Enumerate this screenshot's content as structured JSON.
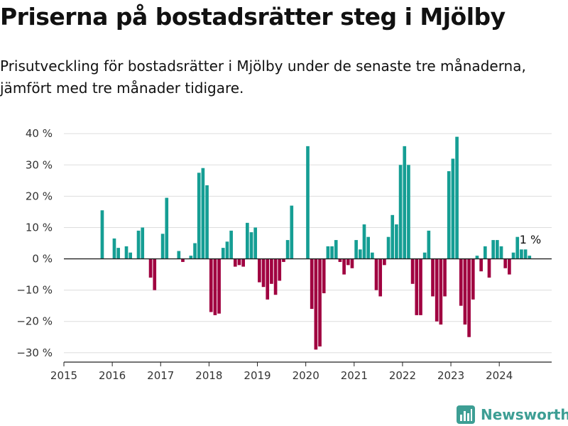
{
  "title": "Priserna på bostadsrätter steg i Mjölby",
  "subtitle": "Prisutveckling för bostadsrätter i Mjölby under de senaste tre månaderna, jämfört med tre månader tidigare.",
  "brand": "Newsworthy",
  "colors": {
    "positive": "#159e94",
    "negative": "#a00140",
    "grid": "#dddddd",
    "brand": "#3d9e94"
  },
  "chart_data": {
    "type": "bar",
    "ylim": [
      -33,
      43
    ],
    "xlim": [
      "2015-01",
      "2025-02"
    ],
    "yticks": [
      40,
      30,
      20,
      10,
      0,
      -10,
      -20,
      -30
    ],
    "ytick_labels": [
      "40 %",
      "30 %",
      "20 %",
      "10 %",
      "0 %",
      "−10 %",
      "−20 %",
      "−30 %"
    ],
    "xticks": [
      "2015",
      "2016",
      "2017",
      "2018",
      "2019",
      "2020",
      "2021",
      "2022",
      "2023",
      "2024"
    ],
    "annotation": {
      "text": "1 %",
      "x": "2024-08",
      "y": 1
    },
    "x": [
      "2015-10",
      "2015-11",
      "2015-12",
      "2016-01",
      "2016-02",
      "2016-03",
      "2016-04",
      "2016-05",
      "2016-06",
      "2016-07",
      "2016-08",
      "2016-09",
      "2016-10",
      "2016-11",
      "2016-12",
      "2017-01",
      "2017-02",
      "2017-03",
      "2017-04",
      "2017-05",
      "2017-06",
      "2017-07",
      "2017-08",
      "2017-09",
      "2017-10",
      "2017-11",
      "2017-12",
      "2018-01",
      "2018-02",
      "2018-03",
      "2018-04",
      "2018-05",
      "2018-06",
      "2018-07",
      "2018-08",
      "2018-09",
      "2018-10",
      "2018-11",
      "2018-12",
      "2019-01",
      "2019-02",
      "2019-03",
      "2019-04",
      "2019-05",
      "2019-06",
      "2019-07",
      "2019-08",
      "2019-09",
      "2019-10",
      "2019-11",
      "2019-12",
      "2020-01",
      "2020-02",
      "2020-03",
      "2020-04",
      "2020-05",
      "2020-06",
      "2020-07",
      "2020-08",
      "2020-09",
      "2020-10",
      "2020-11",
      "2020-12",
      "2021-01",
      "2021-02",
      "2021-03",
      "2021-04",
      "2021-05",
      "2021-06",
      "2021-07",
      "2021-08",
      "2021-09",
      "2021-10",
      "2021-11",
      "2021-12",
      "2022-01",
      "2022-02",
      "2022-03",
      "2022-04",
      "2022-05",
      "2022-06",
      "2022-07",
      "2022-08",
      "2022-09",
      "2022-10",
      "2022-11",
      "2022-12",
      "2023-01",
      "2023-02",
      "2023-03",
      "2023-04",
      "2023-05",
      "2023-06",
      "2023-07",
      "2023-08",
      "2023-09",
      "2023-10",
      "2023-11",
      "2023-12",
      "2024-01",
      "2024-02",
      "2024-03",
      "2024-04",
      "2024-05",
      "2024-06",
      "2024-07",
      "2024-08"
    ],
    "values": [
      15.5,
      0,
      0,
      6.5,
      3.5,
      0,
      4,
      2,
      0,
      9,
      10,
      0,
      -6,
      -10,
      0,
      8,
      19.5,
      0,
      0,
      2.5,
      -1,
      0,
      1,
      5,
      27.5,
      29,
      23.5,
      -17,
      -18,
      -17.5,
      3.5,
      5.5,
      9,
      -2.5,
      -2,
      -2.5,
      11.5,
      8.5,
      10,
      -7.5,
      -9,
      -13,
      -8,
      -11.5,
      -7,
      -1,
      6,
      17,
      0,
      0,
      0,
      36,
      -16,
      -29,
      -28,
      -11,
      4,
      4,
      6,
      -1,
      -5,
      -2,
      -3,
      6,
      3,
      11,
      7,
      2,
      -10,
      -12,
      -2,
      7,
      14,
      11,
      30,
      36,
      30,
      -8,
      -18,
      -18,
      2,
      9,
      -12,
      -20,
      -21,
      -12,
      28,
      32,
      39,
      -15,
      -21,
      -25,
      -13,
      1,
      -4,
      4,
      -6,
      6,
      6,
      4,
      -3,
      -5,
      2,
      7,
      3,
      3,
      1
    ]
  }
}
